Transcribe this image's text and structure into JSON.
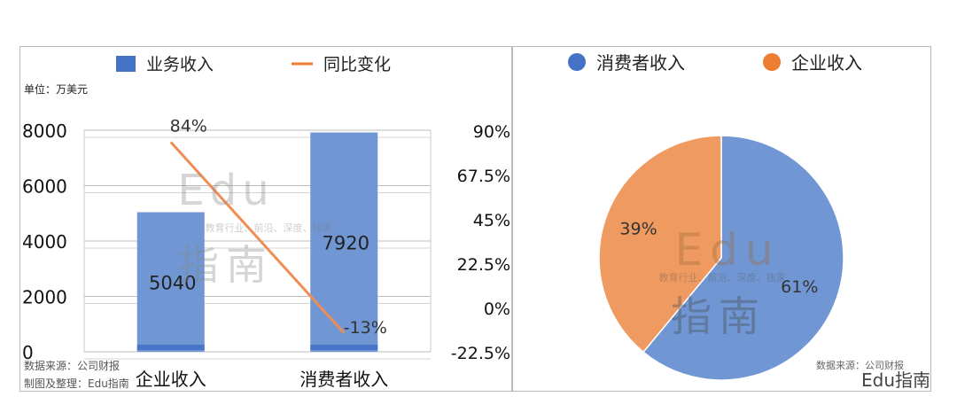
{
  "left_chart": {
    "unit_label": "单位：万美元",
    "legend": {
      "bar": "业务收入",
      "line": "同比变化"
    },
    "source_line1": "数据来源：公司财报",
    "source_line2": "制图及整理：Edu指南",
    "watermark": {
      "latin": "Edu",
      "cn": "指南",
      "tagline": "教育行业、前沿、深度、独家"
    }
  },
  "right_chart": {
    "watermark": {
      "latin": "Edu",
      "cn": "指南",
      "tagline": "教育行业、前沿、深度、独家"
    }
  },
  "footer": {
    "source": "数据来源：公司财报",
    "logo": "Edu指南"
  },
  "colors": {
    "bar": "#7096d4",
    "bar_base": "#4a74c7",
    "line": "#ef8e54",
    "pie_consumer": "#7096d4",
    "pie_enterprise": "#ef9a60",
    "legend_blue": "#4472c4",
    "legend_orange": "#ed7d31"
  },
  "chart_data": [
    {
      "type": "bar",
      "categories": [
        "企业收入",
        "消费者收入"
      ],
      "series": [
        {
          "name": "业务收入",
          "type": "bar",
          "values": [
            5040,
            7920
          ],
          "axis": "left"
        },
        {
          "name": "同比变化",
          "type": "line",
          "values": [
            84,
            -13
          ],
          "value_labels": [
            "84%",
            "-13%"
          ],
          "axis": "right"
        }
      ],
      "y_left": {
        "ylim": [
          0,
          8000
        ],
        "ticks": [
          "0",
          "2000",
          "4000",
          "6000",
          "8000"
        ]
      },
      "y_right": {
        "ylim": [
          -22.5,
          90
        ],
        "ticks": [
          "-22.5%",
          "0%",
          "22.5%",
          "45%",
          "67.5%",
          "90%"
        ]
      },
      "grid": true,
      "legend_position": "top"
    },
    {
      "type": "pie",
      "categories": [
        "消费者收入",
        "企业收入"
      ],
      "values": [
        61,
        39
      ],
      "labels": [
        "61%",
        "39%"
      ],
      "legend_position": "top"
    }
  ]
}
